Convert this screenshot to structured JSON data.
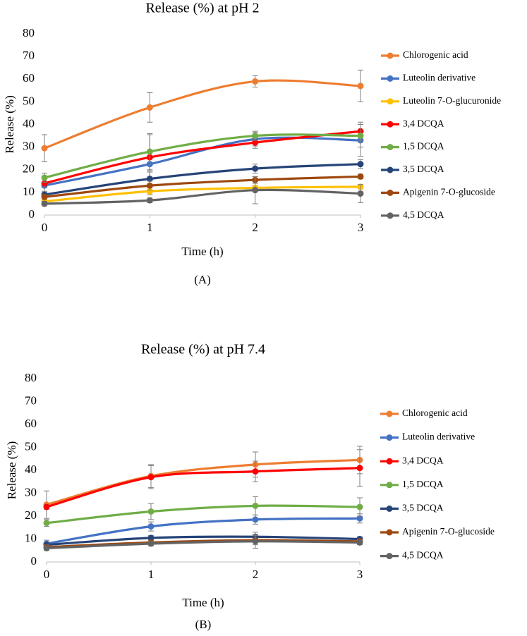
{
  "chart_data": [
    {
      "type": "line",
      "title": "Release (%) at pH 2",
      "x_label": "Time (h)",
      "y_label": "Release (%)",
      "panel_label": "(A)",
      "x": [
        0,
        1,
        2,
        3
      ],
      "xlim": [
        0,
        3
      ],
      "xticks": [
        0,
        1,
        2,
        3
      ],
      "ylim": [
        0,
        80
      ],
      "yticks": [
        0,
        10,
        20,
        30,
        40,
        50,
        60,
        70,
        80
      ],
      "grid": false,
      "legend": "right",
      "smooth": true,
      "series": [
        {
          "name": "Chlorogenic acid",
          "color": "#ed7d31",
          "values": [
            29.5,
            47.5,
            59,
            57
          ],
          "errors": [
            6,
            6.5,
            2.5,
            7
          ]
        },
        {
          "name": "Luteolin derivative",
          "color": "#4472c4",
          "values": [
            13,
            22.5,
            33.5,
            33
          ],
          "errors": [
            3,
            3,
            3,
            7
          ]
        },
        {
          "name": "Luteolin 7-O-glucuronide",
          "color": "#ffc000",
          "values": [
            6,
            10.5,
            12,
            12.5
          ],
          "errors": [
            1,
            1.5,
            1,
            1
          ]
        },
        {
          "name": "3,4 DCQA",
          "color": "#ff0000",
          "values": [
            14,
            25.5,
            32,
            37
          ],
          "errors": [
            2,
            10,
            2.5,
            4
          ]
        },
        {
          "name": "1,5 DCQA",
          "color": "#70ad47",
          "values": [
            16.5,
            28,
            35,
            35
          ],
          "errors": [
            2,
            8,
            2,
            5
          ]
        },
        {
          "name": "3,5 DCQA",
          "color": "#264478",
          "values": [
            9,
            16,
            20.5,
            22.5
          ],
          "errors": [
            1.5,
            3,
            2,
            2
          ]
        },
        {
          "name": "Apigenin 7-O-glucoside",
          "color": "#9e480e",
          "values": [
            8,
            13,
            15.5,
            17
          ],
          "errors": [
            1,
            2,
            1.5,
            1
          ]
        },
        {
          "name": "4,5 DCQA",
          "color": "#636363",
          "values": [
            5,
            6.5,
            11,
            9.5
          ],
          "errors": [
            1,
            1,
            6,
            4
          ]
        }
      ]
    },
    {
      "type": "line",
      "title": "Release (%) at pH 7.4",
      "x_label": "Time (h)",
      "y_label": "Release (%)",
      "panel_label": "(B)",
      "x": [
        0,
        1,
        2,
        3
      ],
      "xlim": [
        0,
        3
      ],
      "xticks": [
        0,
        1,
        2,
        3
      ],
      "ylim": [
        0,
        80
      ],
      "yticks": [
        0,
        10,
        20,
        30,
        40,
        50,
        60,
        70,
        80
      ],
      "grid": false,
      "legend": "right",
      "smooth": true,
      "series": [
        {
          "name": "Chlorogenic acid",
          "color": "#ed7d31",
          "values": [
            25,
            37.5,
            42.5,
            44.5
          ],
          "errors": [
            6,
            5,
            5.5,
            6
          ]
        },
        {
          "name": "Luteolin derivative",
          "color": "#4472c4",
          "values": [
            8,
            15.5,
            18.5,
            19
          ],
          "errors": [
            1.5,
            2,
            2,
            2
          ]
        },
        {
          "name": "3,4 DCQA",
          "color": "#ff0000",
          "values": [
            24,
            37,
            39.5,
            41
          ],
          "errors": [
            1,
            5,
            4.5,
            8
          ]
        },
        {
          "name": "1,5 DCQA",
          "color": "#70ad47",
          "values": [
            17,
            22,
            24.5,
            24
          ],
          "errors": [
            1.5,
            3.5,
            4,
            4
          ]
        },
        {
          "name": "3,5 DCQA",
          "color": "#264478",
          "values": [
            7.5,
            10.5,
            11,
            10
          ],
          "errors": [
            1,
            1,
            2,
            1
          ]
        },
        {
          "name": "Apigenin 7-O-glucoside",
          "color": "#9e480e",
          "values": [
            6.5,
            8.5,
            9.5,
            9
          ],
          "errors": [
            1,
            1,
            2,
            1
          ]
        },
        {
          "name": "4,5 DCQA",
          "color": "#636363",
          "values": [
            6,
            8,
            9,
            8.5
          ],
          "errors": [
            1,
            1,
            3,
            1
          ]
        }
      ]
    }
  ]
}
